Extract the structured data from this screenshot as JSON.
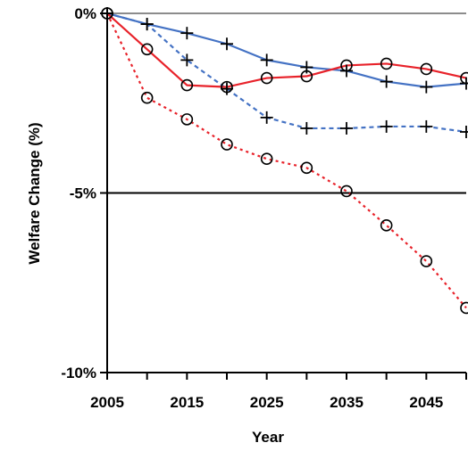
{
  "chart_data": {
    "type": "line",
    "title": "",
    "xlabel": "Year",
    "ylabel": "Welfare Change (%)",
    "xlim": [
      2005,
      2050
    ],
    "ylim": [
      -10,
      0
    ],
    "x_ticks": [
      2005,
      2015,
      2025,
      2035,
      2045
    ],
    "x_tick_labels": [
      "2005",
      "2015",
      "2025",
      "2035",
      "2045"
    ],
    "y_ticks": [
      0,
      -5,
      -10
    ],
    "y_tick_labels": [
      "0%",
      "-5%",
      "-10%"
    ],
    "grid": false,
    "legend": "none",
    "x": [
      2005,
      2010,
      2015,
      2020,
      2025,
      2030,
      2035,
      2040,
      2045,
      2050
    ],
    "series": [
      {
        "color": "#4472C4",
        "line_style": "solid",
        "marker": "plus",
        "values": [
          0,
          -0.3,
          -0.55,
          -0.85,
          -1.3,
          -1.5,
          -1.6,
          -1.9,
          -2.05,
          -1.95
        ]
      },
      {
        "color": "#E8222A",
        "line_style": "solid",
        "marker": "circle",
        "values": [
          0,
          -1.0,
          -2.0,
          -2.05,
          -1.8,
          -1.75,
          -1.45,
          -1.4,
          -1.55,
          -1.8
        ]
      },
      {
        "color": "#4472C4",
        "line_style": "dashed",
        "marker": "plus",
        "values": [
          0,
          -0.3,
          -1.3,
          -2.1,
          -2.9,
          -3.2,
          -3.2,
          -3.15,
          -3.15,
          -3.3
        ]
      },
      {
        "color": "#E8222A",
        "line_style": "dotted",
        "marker": "circle",
        "values": [
          0,
          -2.35,
          -2.95,
          -3.65,
          -4.05,
          -4.3,
          -4.95,
          -5.9,
          -6.9,
          -8.2
        ]
      }
    ]
  }
}
